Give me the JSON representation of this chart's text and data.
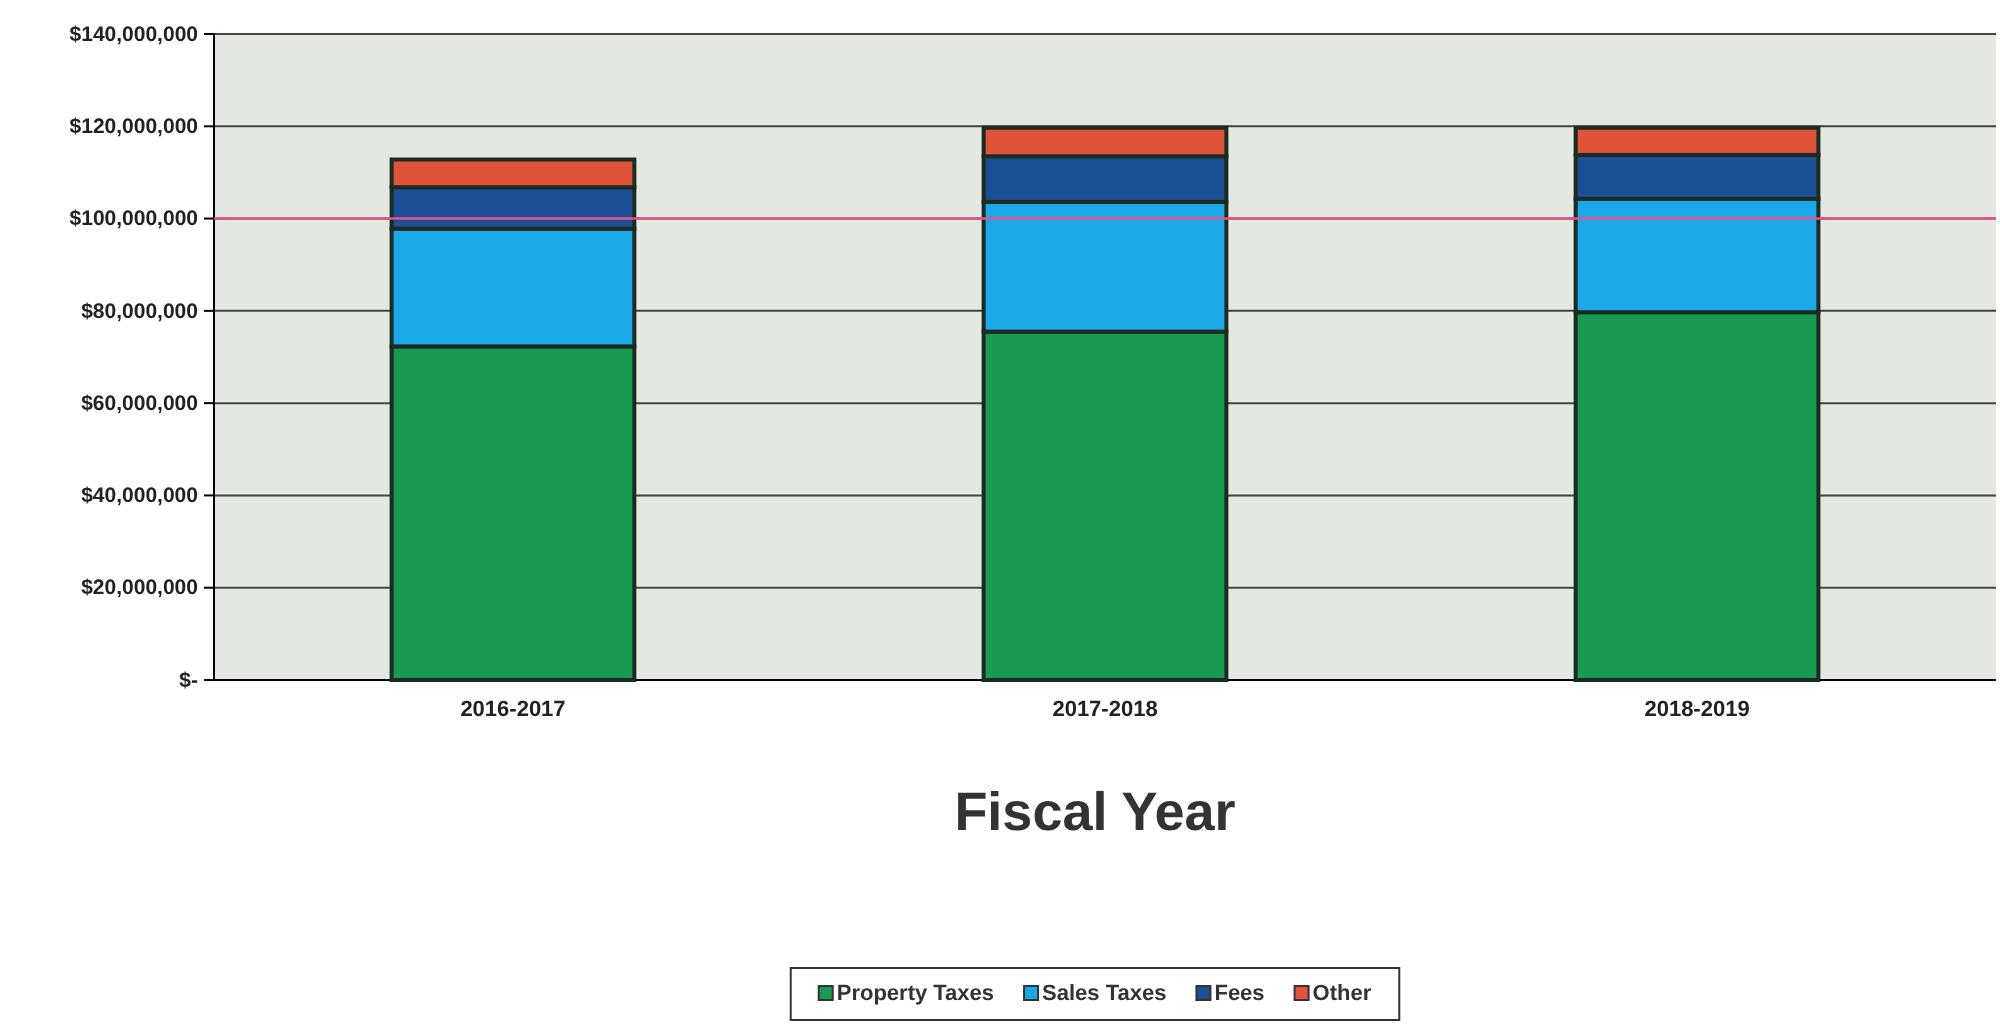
{
  "chart_data": {
    "type": "bar",
    "stacked": true,
    "xlabel": "Fiscal Year",
    "categories": [
      "2016-2017",
      "2017-2018",
      "2018-2019"
    ],
    "series": [
      {
        "name": "Property Taxes",
        "color": "#1a9a50",
        "values": [
          72300000,
          75500000,
          79700000
        ]
      },
      {
        "name": "Sales Taxes",
        "color": "#1aa8e8",
        "values": [
          25500000,
          28100000,
          24600000
        ]
      },
      {
        "name": "Fees",
        "color": "#1d4f95",
        "values": [
          9000000,
          9900000,
          9500000
        ]
      },
      {
        "name": "Other",
        "color": "#e0553a",
        "values": [
          6000000,
          6200000,
          5900000
        ]
      }
    ],
    "ylim": [
      0,
      140000000
    ],
    "yticks": [
      {
        "value": 0,
        "label": "$-"
      },
      {
        "value": 20000000,
        "label": "$20,000,000"
      },
      {
        "value": 40000000,
        "label": "$40,000,000"
      },
      {
        "value": 60000000,
        "label": "$60,000,000"
      },
      {
        "value": 80000000,
        "label": "$80,000,000"
      },
      {
        "value": 100000000,
        "label": "$100,000,000"
      },
      {
        "value": 120000000,
        "label": "$120,000,000"
      },
      {
        "value": 140000000,
        "label": "$140,000,000"
      }
    ],
    "ref_lines": [
      {
        "axis": "y",
        "value": 100000000,
        "color": "#e8508a"
      }
    ],
    "grid": "y",
    "legend": "bottom"
  }
}
